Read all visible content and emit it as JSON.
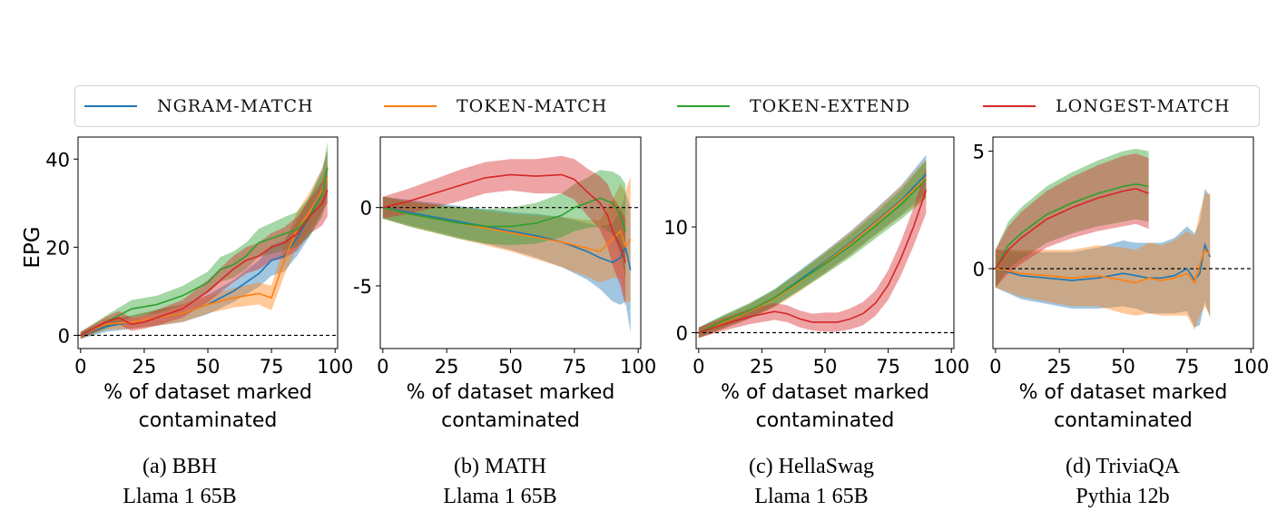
{
  "legend": [
    {
      "label": "NGRAM-MATCH",
      "color": "#1f77b4"
    },
    {
      "label": "TOKEN-MATCH",
      "color": "#ff7f0e"
    },
    {
      "label": "TOKEN-EXTEND",
      "color": "#2ca02c"
    },
    {
      "label": "LONGEST-MATCH",
      "color": "#d62728"
    }
  ],
  "captions": [
    {
      "line1": "(a) BBH",
      "line2": "Llama 1 65B"
    },
    {
      "line1": "(b) MATH",
      "line2": "Llama 1 65B"
    },
    {
      "line1": "(c) HellaSwag",
      "line2": "Llama 1 65B"
    },
    {
      "line1": "(d) TriviaQA",
      "line2": "Pythia 12b"
    }
  ],
  "chart_data": [
    {
      "type": "line",
      "title": "(a) BBH Llama 1 65B",
      "xlabel": "% of dataset marked contaminated",
      "ylabel": "EPG",
      "xlim": [
        -1,
        101
      ],
      "ylim": [
        -3,
        45
      ],
      "xticks": [
        0,
        25,
        50,
        75,
        100
      ],
      "xtick_labels": [
        "0",
        "25",
        "50",
        "75",
        "100"
      ],
      "yticks": [
        0,
        20,
        40
      ],
      "ytick_labels": [
        "0",
        "20",
        "40"
      ],
      "baseline": 0,
      "series": [
        {
          "name": "NGRAM-MATCH",
          "x": [
            0,
            10,
            20,
            30,
            40,
            50,
            60,
            70,
            75,
            80,
            85,
            90,
            95,
            97
          ],
          "y": [
            0,
            2,
            3,
            4,
            5,
            7,
            10,
            14,
            17,
            18,
            22,
            27,
            33,
            36
          ],
          "band": [
            0.8,
            1.2,
            1.5,
            1.8,
            2.0,
            2.2,
            2.5,
            3.0,
            3.5,
            3.5,
            4.0,
            4.5,
            5.0,
            6.0
          ]
        },
        {
          "name": "TOKEN-MATCH",
          "x": [
            0,
            10,
            20,
            30,
            40,
            50,
            60,
            70,
            75,
            80,
            85,
            90,
            95,
            97
          ],
          "y": [
            0,
            2.5,
            3,
            4,
            5,
            7,
            8.5,
            9.5,
            8.5,
            17,
            24,
            28,
            33,
            36
          ],
          "band": [
            0.8,
            1.2,
            1.5,
            1.8,
            2.0,
            2.0,
            2.2,
            2.5,
            2.8,
            3.5,
            4.0,
            4.5,
            5.0,
            6.0
          ]
        },
        {
          "name": "TOKEN-EXTEND",
          "x": [
            0,
            10,
            20,
            30,
            40,
            50,
            55,
            60,
            65,
            70,
            75,
            80,
            85,
            90,
            95,
            97
          ],
          "y": [
            0,
            3,
            6,
            7,
            9,
            12,
            15,
            16,
            18,
            21,
            22,
            23,
            24,
            27,
            32,
            38
          ],
          "band": [
            0.8,
            1.5,
            2.0,
            2.0,
            2.2,
            2.5,
            2.8,
            3.0,
            3.0,
            3.2,
            3.5,
            3.8,
            4.0,
            4.5,
            5.0,
            6.0
          ]
        },
        {
          "name": "LONGEST-MATCH",
          "x": [
            0,
            10,
            15,
            20,
            25,
            30,
            40,
            50,
            60,
            65,
            70,
            75,
            80,
            85,
            90,
            95,
            97
          ],
          "y": [
            0,
            3,
            4,
            2.5,
            3,
            4,
            6,
            10,
            15,
            17,
            18,
            20,
            21,
            23,
            27,
            30,
            33
          ],
          "band": [
            0.8,
            1.2,
            1.5,
            1.5,
            1.5,
            1.8,
            2.0,
            2.5,
            3.0,
            3.0,
            3.0,
            3.2,
            3.5,
            3.8,
            4.0,
            5.0,
            6.0
          ]
        }
      ]
    },
    {
      "type": "line",
      "title": "(b) MATH Llama 1 65B",
      "xlabel": "% of dataset marked contaminated",
      "ylabel": "",
      "xlim": [
        -1,
        101
      ],
      "ylim": [
        -9,
        4.5
      ],
      "xticks": [
        0,
        25,
        50,
        75,
        100
      ],
      "xtick_labels": [
        "0",
        "25",
        "50",
        "75",
        "100"
      ],
      "yticks": [
        -5,
        0
      ],
      "ytick_labels": [
        "-5",
        "0"
      ],
      "baseline": 0,
      "series": [
        {
          "name": "NGRAM-MATCH",
          "x": [
            0,
            10,
            20,
            30,
            40,
            50,
            60,
            70,
            80,
            85,
            90,
            93,
            95,
            97
          ],
          "y": [
            0,
            -0.3,
            -0.6,
            -0.9,
            -1.2,
            -1.5,
            -1.8,
            -2.2,
            -2.8,
            -3.2,
            -3.5,
            -3.2,
            -2.5,
            -4.0
          ],
          "band": [
            0.7,
            0.8,
            0.9,
            1.0,
            1.1,
            1.2,
            1.4,
            1.6,
            1.8,
            2.0,
            2.5,
            3.0,
            3.5,
            4.0
          ]
        },
        {
          "name": "TOKEN-MATCH",
          "x": [
            0,
            10,
            20,
            30,
            40,
            50,
            60,
            70,
            80,
            85,
            90,
            93,
            95,
            97
          ],
          "y": [
            0,
            -0.4,
            -0.7,
            -1.0,
            -1.3,
            -1.6,
            -1.9,
            -2.2,
            -2.6,
            -2.8,
            -2.0,
            -1.5,
            -2.5,
            -2.0
          ],
          "band": [
            0.7,
            0.8,
            0.9,
            1.0,
            1.1,
            1.2,
            1.4,
            1.6,
            1.8,
            2.0,
            2.5,
            3.0,
            3.5,
            4.0
          ]
        },
        {
          "name": "TOKEN-EXTEND",
          "x": [
            0,
            10,
            20,
            30,
            40,
            50,
            60,
            70,
            75,
            80,
            85,
            90,
            93,
            95
          ],
          "y": [
            0,
            -0.4,
            -0.7,
            -1.0,
            -1.2,
            -1.2,
            -1.0,
            -0.5,
            0,
            0.3,
            0.6,
            0.3,
            -0.5,
            -1.5
          ],
          "band": [
            0.7,
            0.8,
            0.9,
            1.0,
            1.1,
            1.2,
            1.3,
            1.4,
            1.5,
            1.6,
            1.8,
            2.0,
            2.5,
            3.0
          ]
        },
        {
          "name": "LONGEST-MATCH",
          "x": [
            0,
            10,
            20,
            30,
            40,
            50,
            60,
            70,
            75,
            80,
            85,
            88,
            90,
            93,
            95
          ],
          "y": [
            0,
            0.4,
            0.9,
            1.4,
            1.9,
            2.1,
            2.0,
            2.1,
            1.8,
            1.0,
            0.3,
            -0.5,
            -1.5,
            -2.5,
            -3.5
          ],
          "band": [
            0.7,
            0.8,
            0.9,
            1.0,
            1.0,
            1.0,
            1.1,
            1.2,
            1.3,
            1.5,
            1.7,
            2.0,
            2.2,
            2.5,
            2.8
          ]
        }
      ]
    },
    {
      "type": "line",
      "title": "(c) HellaSwag Llama 1 65B",
      "xlabel": "% of dataset marked contaminated",
      "ylabel": "",
      "xlim": [
        -1,
        101
      ],
      "ylim": [
        -1.5,
        18.5
      ],
      "xticks": [
        0,
        25,
        50,
        75,
        100
      ],
      "xtick_labels": [
        "0",
        "25",
        "50",
        "75",
        "100"
      ],
      "yticks": [
        0,
        10
      ],
      "ytick_labels": [
        "0",
        "10"
      ],
      "baseline": 0,
      "series": [
        {
          "name": "NGRAM-MATCH",
          "x": [
            0,
            10,
            20,
            30,
            40,
            50,
            60,
            70,
            80,
            90
          ],
          "y": [
            0,
            1,
            2,
            3.3,
            5,
            6.7,
            8.5,
            10.5,
            12.5,
            15
          ],
          "band": [
            0.5,
            0.6,
            0.7,
            0.8,
            0.9,
            1.0,
            1.1,
            1.2,
            1.4,
            1.8
          ]
        },
        {
          "name": "TOKEN-MATCH",
          "x": [
            0,
            10,
            20,
            30,
            40,
            50,
            60,
            70,
            80,
            90
          ],
          "y": [
            0,
            1,
            2,
            3.2,
            4.8,
            6.6,
            8.4,
            10.4,
            12.4,
            14.6
          ],
          "band": [
            0.5,
            0.6,
            0.7,
            0.8,
            0.9,
            1.0,
            1.1,
            1.2,
            1.4,
            1.8
          ]
        },
        {
          "name": "TOKEN-EXTEND",
          "x": [
            0,
            10,
            20,
            30,
            40,
            50,
            60,
            70,
            80,
            90
          ],
          "y": [
            0,
            1.1,
            2.1,
            3.3,
            4.9,
            6.5,
            8.2,
            10.1,
            12.1,
            14.5
          ],
          "band": [
            0.5,
            0.6,
            0.7,
            0.8,
            0.9,
            1.0,
            1.1,
            1.2,
            1.4,
            1.8
          ]
        },
        {
          "name": "LONGEST-MATCH",
          "x": [
            0,
            10,
            20,
            30,
            35,
            40,
            45,
            50,
            55,
            60,
            65,
            70,
            75,
            80,
            85,
            90
          ],
          "y": [
            0,
            0.8,
            1.5,
            2,
            1.8,
            1.3,
            1.0,
            1.0,
            1.0,
            1.3,
            1.8,
            2.8,
            4.5,
            7.0,
            10.0,
            13.5
          ],
          "band": [
            0.5,
            0.6,
            0.7,
            0.8,
            0.8,
            0.8,
            0.8,
            0.9,
            0.9,
            1.0,
            1.1,
            1.2,
            1.4,
            1.6,
            1.8,
            2.2
          ]
        }
      ]
    },
    {
      "type": "line",
      "title": "(d) TriviaQA Pythia 12b",
      "xlabel": "% of dataset marked contaminated",
      "ylabel": "",
      "xlim": [
        -1,
        101
      ],
      "ylim": [
        -3.4,
        5.6
      ],
      "xticks": [
        0,
        25,
        50,
        75,
        100
      ],
      "xtick_labels": [
        "0",
        "25",
        "50",
        "75",
        "100"
      ],
      "yticks": [
        0,
        5
      ],
      "ytick_labels": [
        "0",
        "5"
      ],
      "baseline": 0,
      "series": [
        {
          "name": "NGRAM-MATCH",
          "x": [
            0,
            10,
            20,
            30,
            40,
            50,
            55,
            60,
            65,
            70,
            75,
            78,
            80,
            82,
            84
          ],
          "y": [
            0,
            -0.3,
            -0.4,
            -0.5,
            -0.4,
            -0.2,
            -0.3,
            -0.4,
            -0.4,
            -0.3,
            0,
            -0.5,
            -0.2,
            1.0,
            0.5
          ],
          "band": [
            0.8,
            1.0,
            1.1,
            1.2,
            1.3,
            1.4,
            1.4,
            1.5,
            1.5,
            1.6,
            1.8,
            2.0,
            2.2,
            2.4,
            2.6
          ]
        },
        {
          "name": "TOKEN-MATCH",
          "x": [
            0,
            10,
            20,
            30,
            40,
            50,
            55,
            60,
            65,
            70,
            75,
            78,
            80,
            82,
            84
          ],
          "y": [
            0,
            -0.2,
            -0.3,
            -0.4,
            -0.3,
            -0.5,
            -0.6,
            -0.4,
            -0.5,
            -0.4,
            -0.2,
            -0.6,
            0.2,
            0.8,
            0.6
          ],
          "band": [
            0.8,
            1.0,
            1.1,
            1.2,
            1.3,
            1.4,
            1.4,
            1.5,
            1.5,
            1.6,
            1.8,
            2.0,
            2.2,
            2.4,
            2.6
          ]
        },
        {
          "name": "TOKEN-EXTEND",
          "x": [
            0,
            5,
            10,
            20,
            30,
            40,
            50,
            55,
            60
          ],
          "y": [
            0,
            1,
            1.5,
            2.3,
            2.8,
            3.2,
            3.5,
            3.6,
            3.5
          ],
          "band": [
            0.8,
            1.0,
            1.1,
            1.2,
            1.3,
            1.4,
            1.5,
            1.5,
            1.5
          ]
        },
        {
          "name": "LONGEST-MATCH",
          "x": [
            0,
            5,
            10,
            20,
            30,
            40,
            50,
            55,
            60
          ],
          "y": [
            0,
            0.8,
            1.3,
            2.1,
            2.6,
            3.0,
            3.3,
            3.4,
            3.2
          ],
          "band": [
            0.8,
            1.0,
            1.1,
            1.2,
            1.3,
            1.4,
            1.5,
            1.5,
            1.5
          ]
        }
      ]
    }
  ]
}
